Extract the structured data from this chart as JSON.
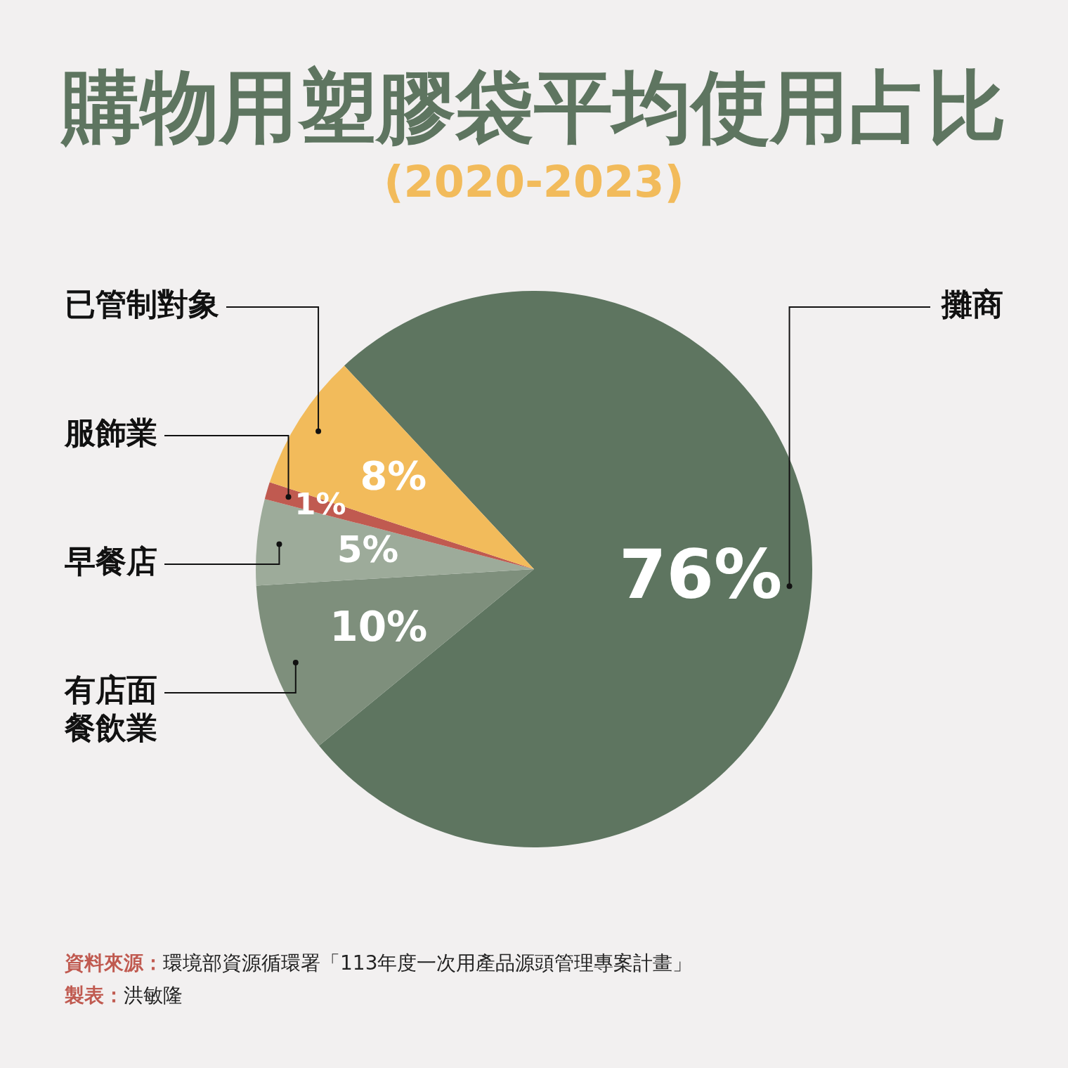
{
  "chart_data": {
    "type": "pie",
    "title": "購物用塑膠袋平均使用占比",
    "subtitle": "(2020-2023)",
    "categories": [
      "攤商",
      "有店面餐飲業",
      "早餐店",
      "服飾業",
      "已管制對象"
    ],
    "values": [
      76,
      10,
      5,
      1,
      8
    ],
    "colors": [
      "#5e7560",
      "#7e8f7c",
      "#9dab9a",
      "#c05a50",
      "#f2bb5b"
    ],
    "value_labels": [
      "76%",
      "10%",
      "5%",
      "1%",
      "8%"
    ],
    "annotations": [
      "資料來源：環境部資源循環署「113年度一次用產品源頭管理專案計畫」",
      "製表：洪敏隆"
    ]
  }
}
